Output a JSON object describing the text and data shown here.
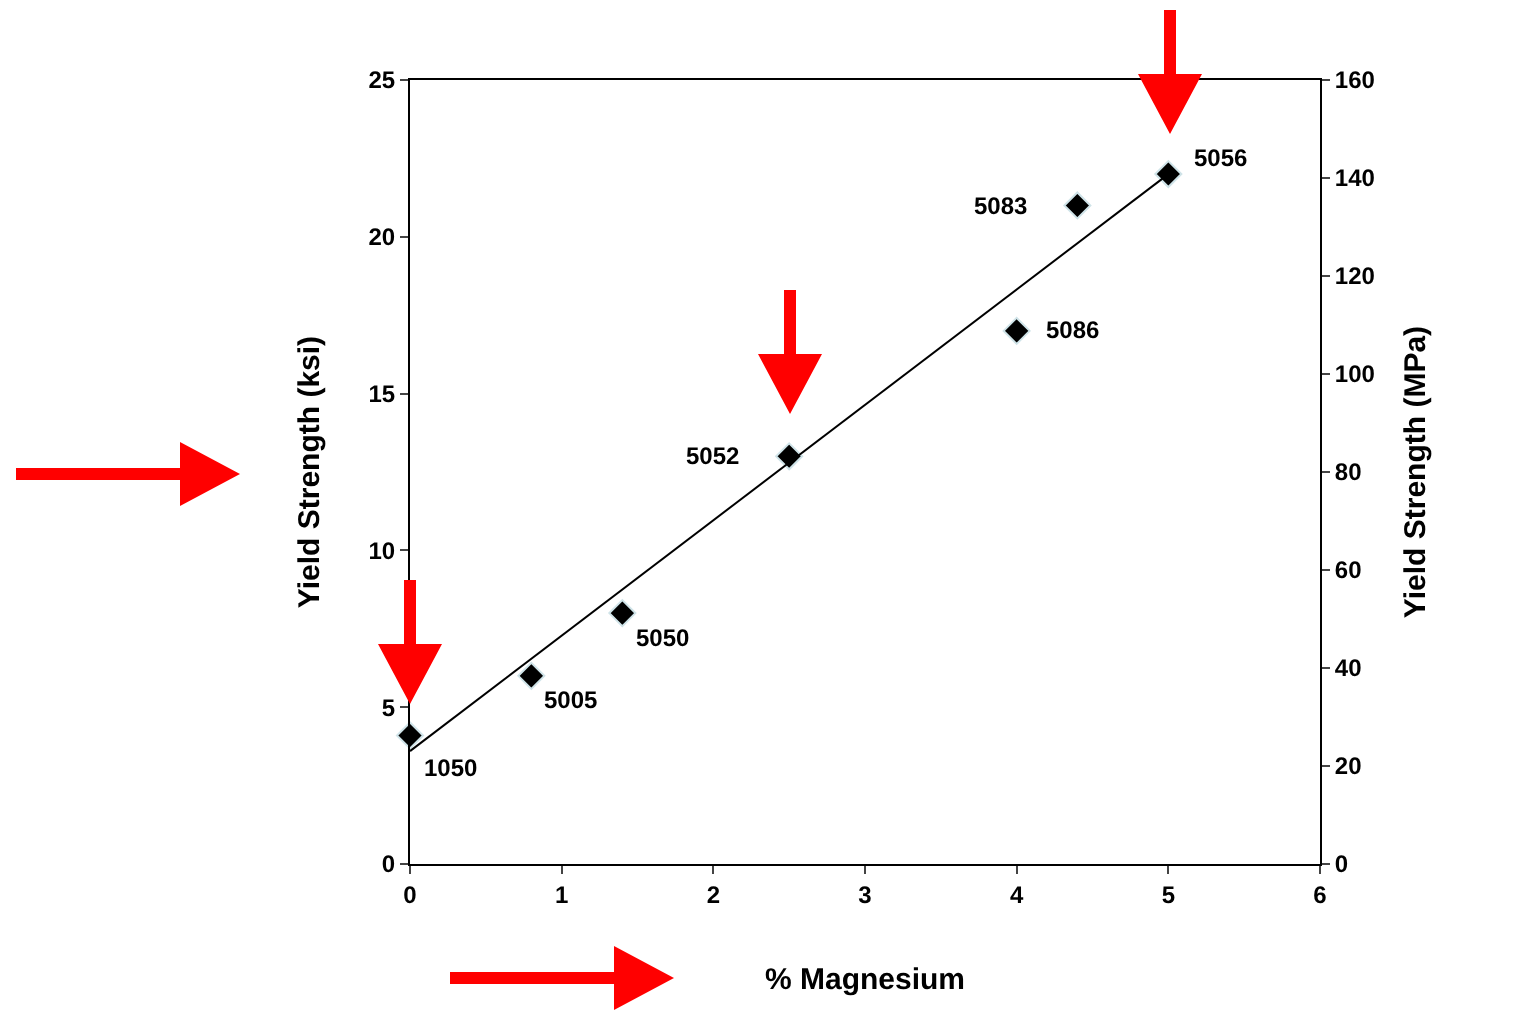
{
  "chart_data": {
    "type": "scatter",
    "xlabel": "% Magnesium",
    "ylabel": "Yield Strength (ksi)",
    "y2label": "Yield Strength (MPa)",
    "x": [
      0,
      0.8,
      1.4,
      2.5,
      4,
      4.4,
      5
    ],
    "series": [
      {
        "type": "scatter",
        "color": "#000000",
        "values": [
          4.1,
          6,
          8,
          13,
          17,
          21,
          22
        ],
        "marker": "diamond"
      },
      {
        "type": "line",
        "color": "#000000",
        "x": [
          0,
          5
        ],
        "values": [
          3.6,
          22
        ],
        "marker": "none",
        "line_style": "solid"
      }
    ],
    "annotations": [
      {
        "text": "1050",
        "x": 0,
        "y": 4.1
      },
      {
        "text": "5005",
        "x": 0.8,
        "y": 6
      },
      {
        "text": "5050",
        "x": 1.4,
        "y": 8
      },
      {
        "text": "5052",
        "x": 2.5,
        "y": 13
      },
      {
        "text": "5086",
        "x": 4,
        "y": 17
      },
      {
        "text": "5083",
        "x": 4.4,
        "y": 21
      },
      {
        "text": "5056",
        "x": 5,
        "y": 22
      }
    ],
    "xlim": [
      0,
      6
    ],
    "xticks": [
      0,
      1,
      2,
      3,
      4,
      5,
      6
    ],
    "ylim": [
      0,
      25
    ],
    "yticks": [
      0,
      5,
      10,
      15,
      20,
      25
    ],
    "y2lim": [
      0,
      160
    ],
    "y2ticks": [
      0,
      20,
      40,
      60,
      80,
      100,
      120,
      140,
      160
    ],
    "grid": false
  }
}
